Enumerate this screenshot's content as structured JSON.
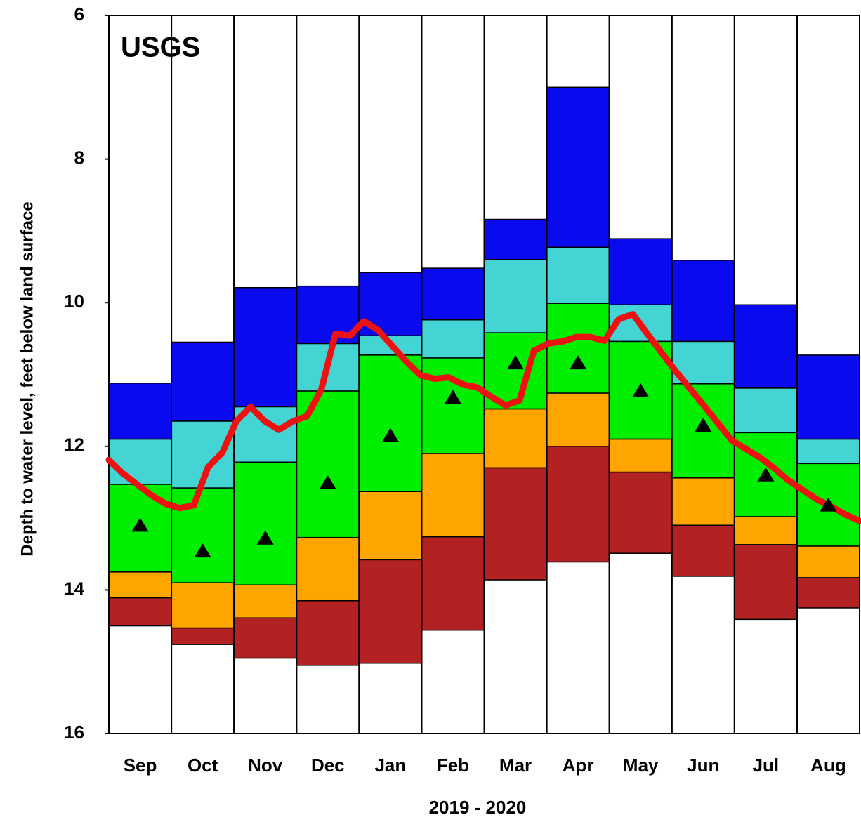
{
  "chart_data": {
    "type": "percentile-bands",
    "annotation": "USGS",
    "annotation_color": "#22aa22",
    "y_label": "Depth to water level, feet below land surface",
    "x_label": "2019 - 2020",
    "categories": [
      "Sep",
      "Oct",
      "Nov",
      "Dec",
      "Jan",
      "Feb",
      "Mar",
      "Apr",
      "May",
      "Jun",
      "Jul",
      "Aug"
    ],
    "ylim": [
      6,
      16
    ],
    "y_inverted": true,
    "yticks": [
      6,
      8,
      10,
      12,
      14,
      16
    ],
    "boundaries": [
      [
        11.12,
        10.55,
        9.79,
        9.77,
        9.58,
        9.52,
        8.84,
        7.0,
        9.11,
        9.41,
        10.03,
        10.73
      ],
      [
        11.9,
        11.65,
        11.45,
        10.57,
        10.46,
        10.24,
        9.4,
        9.23,
        10.03,
        10.54,
        11.19,
        11.9
      ],
      [
        12.53,
        12.58,
        12.22,
        11.23,
        10.73,
        10.77,
        10.42,
        10.01,
        10.54,
        11.13,
        11.81,
        12.24
      ],
      [
        13.75,
        13.9,
        13.93,
        13.27,
        12.63,
        12.1,
        11.48,
        11.26,
        11.9,
        12.44,
        12.98,
        13.39
      ],
      [
        14.11,
        14.53,
        14.39,
        14.15,
        13.58,
        13.26,
        12.3,
        12.0,
        12.36,
        13.1,
        13.37,
        13.83
      ],
      [
        14.5,
        14.76,
        14.95,
        15.05,
        15.02,
        14.56,
        13.86,
        13.61,
        13.49,
        13.81,
        14.41,
        14.25
      ]
    ],
    "band_colors": [
      "#0a0aee",
      "#44d4d4",
      "#00ee00",
      "#ffa500",
      "#b22222"
    ],
    "median": {
      "color": "#000000",
      "values": [
        13.1,
        13.46,
        13.28,
        12.51,
        11.85,
        11.32,
        10.84,
        10.84,
        11.23,
        11.71,
        12.4,
        12.82
      ]
    },
    "line": {
      "color": "#ee1111",
      "values": [
        12.19,
        12.38,
        12.53,
        12.68,
        12.8,
        12.86,
        12.82,
        12.29,
        12.09,
        11.65,
        11.45,
        11.65,
        11.77,
        11.65,
        11.58,
        11.21,
        10.43,
        10.46,
        10.26,
        10.38,
        10.6,
        10.82,
        11.01,
        11.06,
        11.04,
        11.14,
        11.18,
        11.31,
        11.43,
        11.36,
        10.67,
        10.57,
        10.54,
        10.48,
        10.48,
        10.53,
        10.23,
        10.16,
        10.43,
        10.69,
        10.95,
        11.19,
        11.43,
        11.68,
        11.92,
        12.04,
        12.16,
        12.31,
        12.48,
        12.61,
        12.74,
        12.84,
        12.95,
        13.04
      ]
    }
  }
}
